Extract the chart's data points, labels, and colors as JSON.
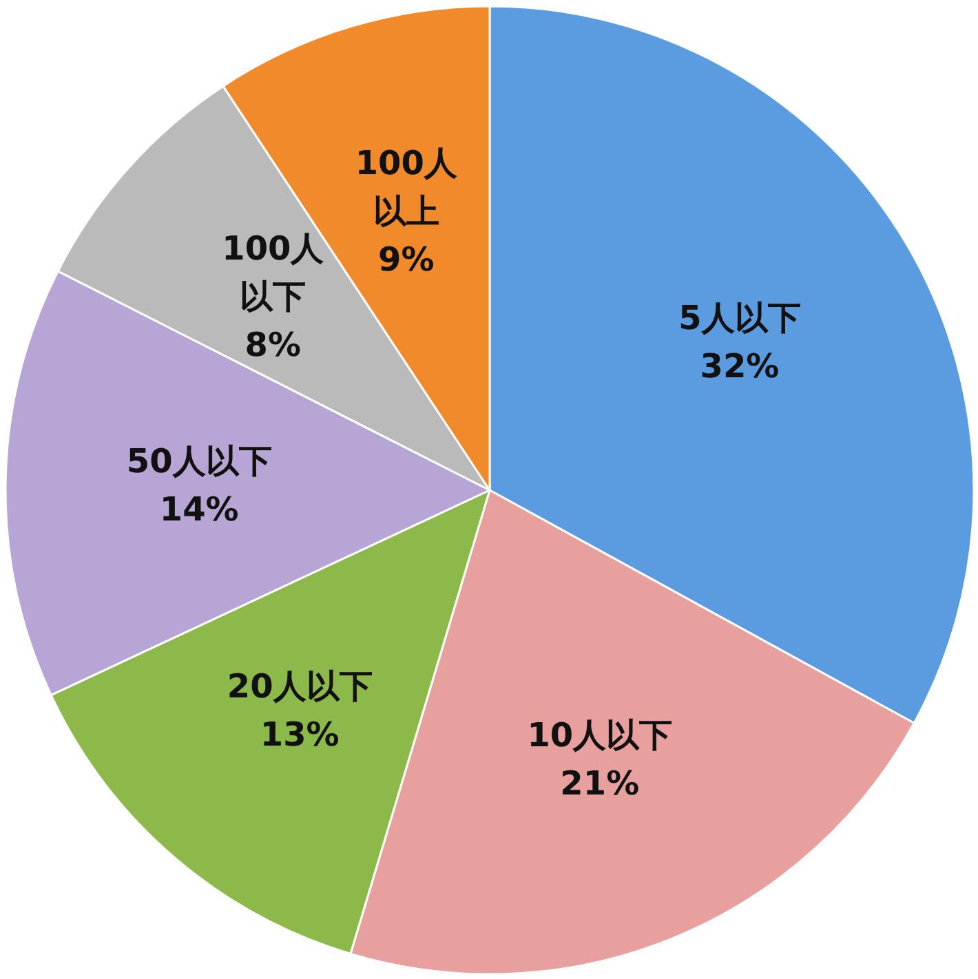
{
  "chart_data": {
    "type": "pie",
    "categories": [
      "5人以下",
      "10人以下",
      "20人以下",
      "50人以下",
      "100人以下",
      "100人以上"
    ],
    "values": [
      32,
      21,
      13,
      14,
      8,
      9
    ],
    "value_labels": [
      "32%",
      "21%",
      "13%",
      "14%",
      "8%",
      "9%"
    ],
    "colors": [
      "#5b9be0",
      "#e8a09e",
      "#8db84a",
      "#b7a5d6",
      "#bababa",
      "#f08a2a"
    ]
  }
}
